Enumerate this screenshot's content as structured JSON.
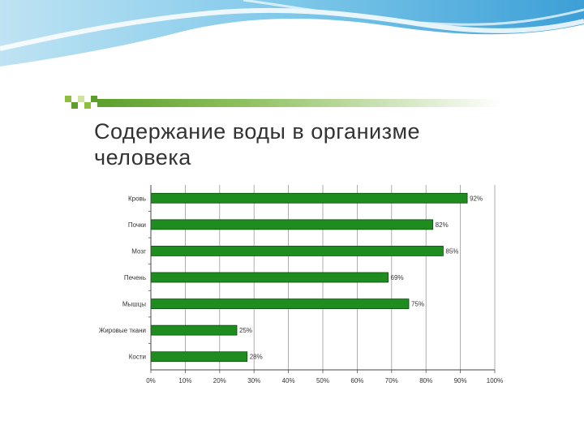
{
  "slide": {
    "title_line1": "Содержание воды в организме",
    "title_line2": "человека",
    "accent_color": "#5c9f2c",
    "wave_color": "#4aa8d8"
  },
  "chart_data": {
    "type": "bar",
    "orientation": "horizontal",
    "categories": [
      "Кровь",
      "Почки",
      "Мозг",
      "Печень",
      "Мышцы",
      "Жировые ткани",
      "Кости"
    ],
    "values": [
      92,
      82,
      85,
      69,
      75,
      25,
      28
    ],
    "data_labels": [
      "92%",
      "82%",
      "85%",
      "69%",
      "75%",
      "25%",
      "28%"
    ],
    "x_ticks": [
      0,
      10,
      20,
      30,
      40,
      50,
      60,
      70,
      80,
      90,
      100
    ],
    "x_tick_labels": [
      "0%",
      "10%",
      "20%",
      "30%",
      "40%",
      "50%",
      "60%",
      "70%",
      "80%",
      "90%",
      "100%"
    ],
    "xlim": [
      0,
      100
    ],
    "grid": true,
    "bar_color": "#1e8c1e",
    "bar_edge_color": "#0b4d0b",
    "title": "",
    "xlabel": "",
    "ylabel": ""
  }
}
